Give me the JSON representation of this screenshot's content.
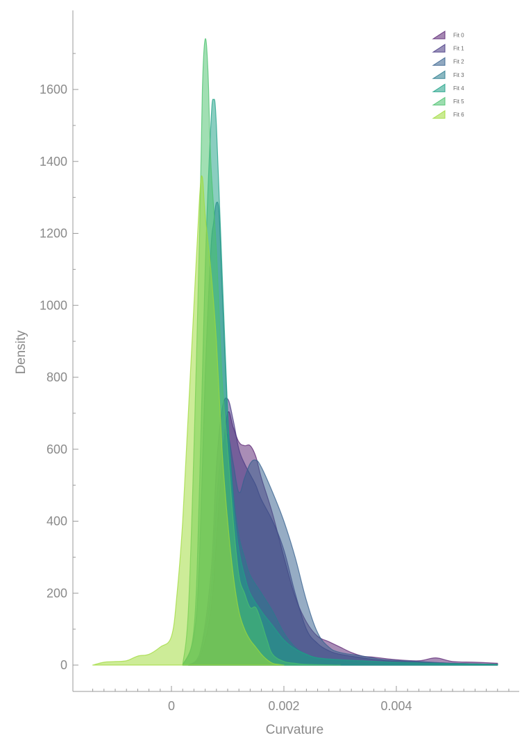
{
  "chart_data": {
    "type": "area",
    "title": "",
    "xlabel": "Curvature",
    "ylabel": "Density",
    "xlim": [
      -0.00175,
      0.0062
    ],
    "ylim": [
      -75,
      1830
    ],
    "x_ticks": [
      0,
      0.002,
      0.004
    ],
    "x_tick_labels": [
      "0",
      "0.002",
      "0.004"
    ],
    "x_minor_ticks": [
      -0.0014,
      -0.0012,
      -0.001,
      -0.0008,
      -0.0006,
      -0.0004,
      -0.0002,
      0.0002,
      0.0004,
      0.0006,
      0.0008,
      0.001,
      0.0012,
      0.0014,
      0.0016,
      0.0018,
      0.0022,
      0.0024,
      0.0026,
      0.0028,
      0.003,
      0.0032,
      0.0034,
      0.0036,
      0.0038,
      0.0042,
      0.0044,
      0.0046,
      0.0048,
      0.005,
      0.0052,
      0.0054,
      0.0056,
      0.0058,
      0.006
    ],
    "y_ticks": [
      0,
      200,
      400,
      600,
      800,
      1000,
      1200,
      1400,
      1600
    ],
    "y_tick_labels": [
      "0",
      "200",
      "400",
      "600",
      "800",
      "1000",
      "1200",
      "1400",
      "1600"
    ],
    "y_minor_ticks": [
      100,
      300,
      500,
      700,
      900,
      1100,
      1300,
      1500,
      1700
    ],
    "grid": false,
    "legend_position": "top-right",
    "series": [
      {
        "name": "Fit 0",
        "color": "#5b2473",
        "x": [
          0.0003,
          0.0005,
          0.0007,
          0.0008,
          0.0009,
          0.001,
          0.0011,
          0.0012,
          0.0013,
          0.0014,
          0.0015,
          0.0016,
          0.0018,
          0.002,
          0.0022,
          0.0024,
          0.0026,
          0.0028,
          0.003,
          0.0032,
          0.0034,
          0.0036,
          0.004,
          0.0044,
          0.0047,
          0.005,
          0.0054,
          0.0058
        ],
        "y": [
          0,
          20,
          150,
          350,
          560,
          700,
          660,
          620,
          610,
          610,
          580,
          520,
          420,
          300,
          190,
          120,
          80,
          65,
          50,
          35,
          25,
          22,
          15,
          12,
          20,
          10,
          8,
          5
        ]
      },
      {
        "name": "Fit 1",
        "color": "#453681",
        "x": [
          0.0003,
          0.0005,
          0.0007,
          0.0008,
          0.0009,
          0.001,
          0.0011,
          0.0012,
          0.0013,
          0.0014,
          0.0015,
          0.0016,
          0.0018,
          0.002,
          0.0022,
          0.0024,
          0.0026,
          0.0028,
          0.003,
          0.0034,
          0.0038,
          0.0044,
          0.005,
          0.0058
        ],
        "y": [
          0,
          30,
          250,
          550,
          710,
          740,
          680,
          600,
          560,
          530,
          500,
          460,
          400,
          320,
          200,
          100,
          60,
          40,
          30,
          20,
          12,
          8,
          5,
          2
        ]
      },
      {
        "name": "Fit 2",
        "color": "#35608d",
        "x": [
          0.0003,
          0.0005,
          0.0007,
          0.0008,
          0.0009,
          0.001,
          0.0011,
          0.0012,
          0.0013,
          0.0014,
          0.0015,
          0.0016,
          0.0018,
          0.002,
          0.0022,
          0.0024,
          0.0026,
          0.0028,
          0.003,
          0.0034,
          0.0038,
          0.0044,
          0.005,
          0.0058
        ],
        "y": [
          0,
          30,
          200,
          450,
          600,
          640,
          560,
          480,
          520,
          560,
          570,
          550,
          480,
          400,
          300,
          180,
          90,
          50,
          35,
          25,
          15,
          10,
          5,
          2
        ]
      },
      {
        "name": "Fit 3",
        "color": "#297b8e",
        "x": [
          0.0002,
          0.0004,
          0.0005,
          0.0006,
          0.0007,
          0.00075,
          0.0008,
          0.00085,
          0.0009,
          0.001,
          0.0011,
          0.0012,
          0.0013,
          0.0014,
          0.0016,
          0.0018,
          0.002,
          0.0022,
          0.0024,
          0.0026,
          0.003,
          0.0034,
          0.004,
          0.005,
          0.0058
        ],
        "y": [
          0,
          80,
          300,
          800,
          1150,
          1230,
          1285,
          1250,
          1050,
          700,
          480,
          360,
          300,
          250,
          200,
          150,
          90,
          50,
          30,
          20,
          12,
          10,
          6,
          3,
          1
        ]
      },
      {
        "name": "Fit 4",
        "color": "#1fa187",
        "x": [
          0.0002,
          0.0004,
          0.0005,
          0.0006,
          0.0007,
          0.00075,
          0.0008,
          0.0009,
          0.001,
          0.0011,
          0.0012,
          0.0013,
          0.0014,
          0.0016,
          0.0018,
          0.002,
          0.0022,
          0.0024,
          0.0026,
          0.003,
          0.0034,
          0.004,
          0.005,
          0.0058
        ],
        "y": [
          0,
          100,
          500,
          1100,
          1500,
          1572,
          1500,
          1100,
          700,
          450,
          320,
          250,
          200,
          150,
          110,
          70,
          45,
          30,
          20,
          15,
          12,
          8,
          4,
          2
        ]
      },
      {
        "name": "Fit 5",
        "color": "#4ac16d",
        "x": [
          0.0002,
          0.0003,
          0.0004,
          0.0005,
          0.00055,
          0.0006,
          0.00065,
          0.0007,
          0.0008,
          0.0009,
          0.001,
          0.0011,
          0.0012,
          0.0013,
          0.0014,
          0.0015,
          0.0016,
          0.0017,
          0.0018,
          0.002,
          0.0022,
          0.0024,
          0.003
        ],
        "y": [
          0,
          150,
          600,
          1200,
          1600,
          1740,
          1650,
          1400,
          1150,
          800,
          600,
          400,
          250,
          200,
          160,
          160,
          120,
          70,
          30,
          10,
          5,
          2,
          0
        ]
      },
      {
        "name": "Fit 6",
        "color": "#9fda3a",
        "x": [
          -0.0014,
          -0.0012,
          -0.001,
          -0.0008,
          -0.0006,
          -0.0004,
          -0.0002,
          0.0,
          0.0001,
          0.0002,
          0.0003,
          0.0004,
          0.0005,
          0.00055,
          0.0006,
          0.0007,
          0.0008,
          0.0009,
          0.001,
          0.0011,
          0.0012,
          0.0013,
          0.0014,
          0.0015,
          0.0016,
          0.0017,
          0.0018,
          0.0019,
          0.002
        ],
        "y": [
          0,
          8,
          10,
          12,
          25,
          30,
          50,
          80,
          200,
          400,
          700,
          1000,
          1300,
          1356,
          1250,
          1100,
          900,
          600,
          400,
          250,
          150,
          100,
          70,
          50,
          30,
          15,
          5,
          2,
          0
        ]
      }
    ]
  }
}
